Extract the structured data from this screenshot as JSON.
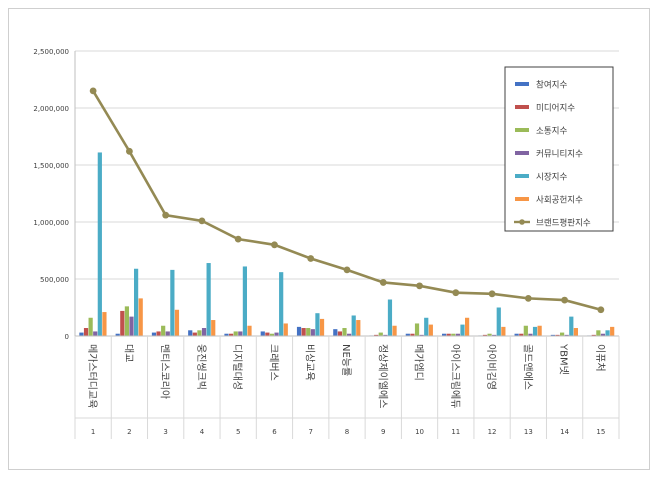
{
  "chart_data": {
    "type": "bar",
    "categories": [
      "메가스터디교육",
      "대교",
      "멘티스코리아",
      "웅진씽크빅",
      "디지털대성",
      "크레버스",
      "비상교육",
      "NE능률",
      "정상제이엘에스",
      "메가엠디",
      "아이스크림에듀",
      "아이비김영",
      "골드앤에스",
      "YBM넷",
      "이퓨처"
    ],
    "rank_labels": [
      "1",
      "2",
      "3",
      "4",
      "5",
      "6",
      "7",
      "8",
      "9",
      "10",
      "11",
      "12",
      "13",
      "14",
      "15"
    ],
    "ylim": [
      0,
      2500000
    ],
    "y_ticks": [
      0,
      500000,
      1000000,
      1500000,
      2000000,
      2500000
    ],
    "y_tick_labels": [
      "0",
      "500,000",
      "1,000,000",
      "1,500,000",
      "2,000,000",
      "2,500,000"
    ],
    "grid": true,
    "legend_position": "top-right",
    "series": [
      {
        "name": "참여지수",
        "kind": "bar",
        "color": "#4472c4",
        "values": [
          30000,
          20000,
          30000,
          50000,
          20000,
          40000,
          80000,
          60000,
          5000,
          20000,
          20000,
          5000,
          20000,
          10000,
          5000
        ]
      },
      {
        "name": "미디어지수",
        "kind": "bar",
        "color": "#c0504d",
        "values": [
          70000,
          220000,
          40000,
          30000,
          20000,
          30000,
          70000,
          40000,
          10000,
          20000,
          20000,
          10000,
          20000,
          10000,
          10000
        ]
      },
      {
        "name": "소통지수",
        "kind": "bar",
        "color": "#9bbb59",
        "values": [
          160000,
          260000,
          90000,
          50000,
          40000,
          20000,
          70000,
          70000,
          30000,
          110000,
          20000,
          20000,
          90000,
          30000,
          50000
        ]
      },
      {
        "name": "커뮤니티지수",
        "kind": "bar",
        "color": "#8064a2",
        "values": [
          40000,
          170000,
          40000,
          70000,
          40000,
          30000,
          60000,
          20000,
          10000,
          10000,
          20000,
          10000,
          20000,
          10000,
          20000
        ]
      },
      {
        "name": "시장지수",
        "kind": "bar",
        "color": "#4bacc6",
        "values": [
          1610000,
          590000,
          580000,
          640000,
          610000,
          560000,
          200000,
          180000,
          320000,
          160000,
          100000,
          250000,
          80000,
          170000,
          50000
        ]
      },
      {
        "name": "사회공헌지수",
        "kind": "bar",
        "color": "#f79646",
        "values": [
          210000,
          330000,
          230000,
          140000,
          90000,
          110000,
          150000,
          140000,
          90000,
          100000,
          160000,
          80000,
          90000,
          70000,
          80000
        ]
      },
      {
        "name": "브랜드평판지수",
        "kind": "line",
        "color": "#948a54",
        "values": [
          2150000,
          1620000,
          1060000,
          1010000,
          850000,
          800000,
          680000,
          580000,
          470000,
          440000,
          380000,
          370000,
          330000,
          315000,
          230000
        ]
      }
    ]
  }
}
